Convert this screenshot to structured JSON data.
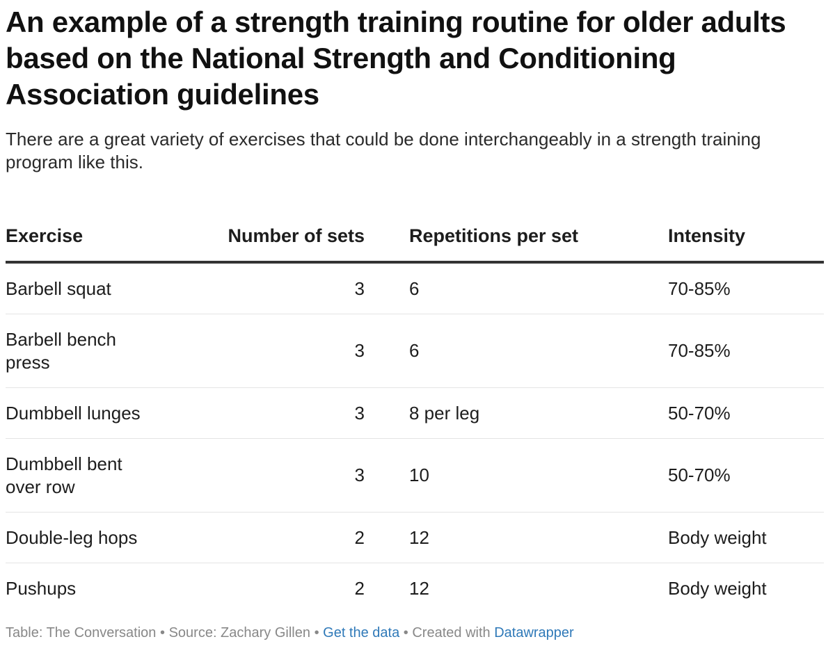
{
  "title": "An example of a strength training routine for older adults based on the National Strength and Conditioning Association guidelines",
  "subtitle": "There are a great variety of exercises that could be done interchangeably in a strength training program like this.",
  "chart_data": {
    "type": "table",
    "columns": [
      "Exercise",
      "Number of sets",
      "Repetitions per set",
      "Intensity"
    ],
    "rows": [
      {
        "exercise": "Barbell squat",
        "sets": "3",
        "reps": "6",
        "intensity": "70-85%"
      },
      {
        "exercise": "Barbell bench press",
        "sets": "3",
        "reps": "6",
        "intensity": "70-85%"
      },
      {
        "exercise": "Dumbbell lunges",
        "sets": "3",
        "reps": "8 per leg",
        "intensity": "50-70%"
      },
      {
        "exercise": "Dumbbell bent over row",
        "sets": "3",
        "reps": "10",
        "intensity": "50-70%"
      },
      {
        "exercise": "Double-leg hops",
        "sets": "2",
        "reps": "12",
        "intensity": "Body weight"
      },
      {
        "exercise": "Pushups",
        "sets": "2",
        "reps": "12",
        "intensity": "Body weight"
      }
    ]
  },
  "footer": {
    "table_credit": "Table: The Conversation",
    "separator": "•",
    "source": "Source: Zachary Gillen",
    "get_data": "Get the data",
    "created_with": "Created with",
    "tool": "Datawrapper"
  }
}
